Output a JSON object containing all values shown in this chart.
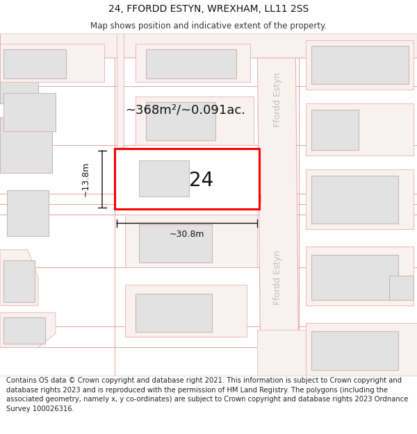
{
  "title": "24, FFORDD ESTYN, WREXHAM, LL11 2SS",
  "subtitle": "Map shows position and indicative extent of the property.",
  "footer": "Contains OS data © Crown copyright and database right 2021. This information is subject to Crown copyright and database rights 2023 and is reproduced with the permission of HM Land Registry. The polygons (including the associated geometry, namely x, y co-ordinates) are subject to Crown copyright and database rights 2023 Ordnance Survey 100026316.",
  "background_color": "#ffffff",
  "map_bg": "#ffffff",
  "road_fill": "#f9f0f0",
  "road_line": "#e8b0b0",
  "bld_fill": "#e2e2e2",
  "bld_line": "#c8b8b8",
  "plot_fill": "#ffffff",
  "plot_line": "#ff0000",
  "plot_lw": 2.2,
  "street_color": "#c0c0c0",
  "dim_color": "#111111",
  "area_text": "~368m²/~0.091ac.",
  "number_text": "24",
  "dim_w_text": "~30.8m",
  "dim_h_text": "~13.8m",
  "title_fs": 10,
  "subtitle_fs": 8.5,
  "footer_fs": 7.2,
  "area_fs": 13,
  "number_fs": 20,
  "dim_fs": 9,
  "street_fs": 9
}
